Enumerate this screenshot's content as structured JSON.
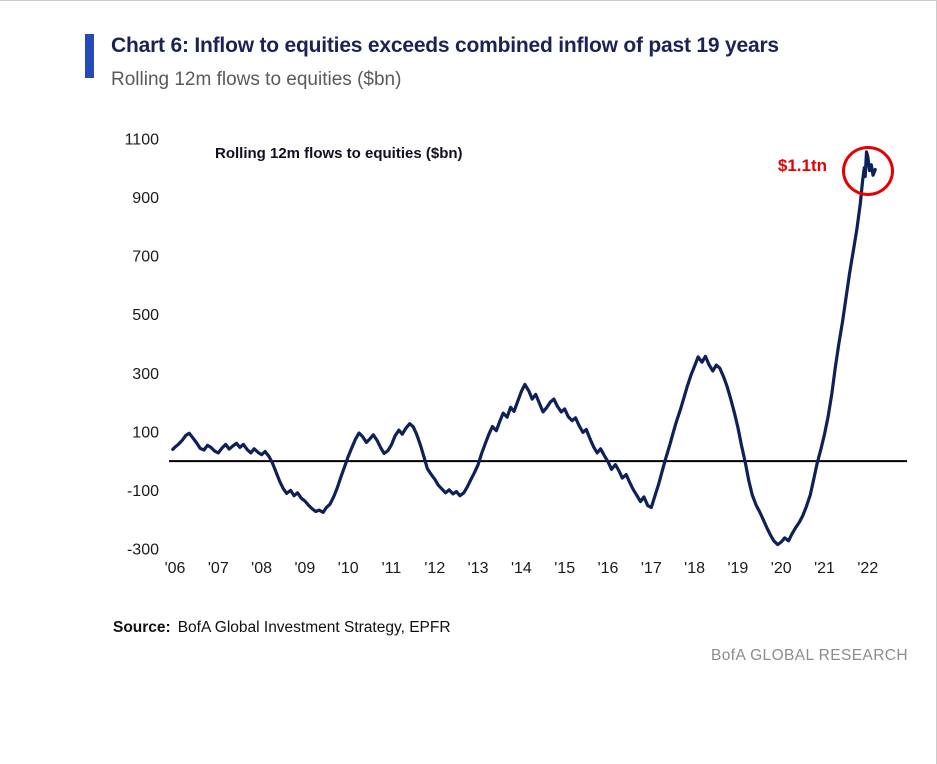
{
  "header": {
    "title": "Chart 6: Inflow to equities exceeds combined inflow of past 19 years",
    "subtitle": "Rolling 12m flows to equities ($bn)",
    "accent_color": "#2649b8"
  },
  "chart": {
    "inner_label": "Rolling 12m flows to equities ($bn)",
    "annotation": {
      "text": "$1.1tn",
      "color": "#e60000"
    },
    "line_color": "#0e2058",
    "zero_line_color": "#000000"
  },
  "source": {
    "label": "Source:",
    "text": "BofA Global Investment Strategy, EPFR"
  },
  "footer": {
    "brand": "BofA GLOBAL RESEARCH"
  },
  "chart_data": {
    "type": "line",
    "title": "Rolling 12m flows to equities ($bn)",
    "xlabel": "",
    "ylabel": "",
    "ylim": [
      -300,
      1100
    ],
    "xlim": [
      2005.95,
      2022.3
    ],
    "grid": false,
    "legend": "none",
    "y_ticks": [
      1100,
      900,
      700,
      500,
      300,
      100,
      -100,
      -300
    ],
    "x_tick_labels": [
      "'06",
      "'07",
      "'08",
      "'09",
      "'10",
      "'11",
      "'12",
      "'13",
      "'14",
      "'15",
      "'16",
      "'17",
      "'18",
      "'19",
      "'20",
      "'21",
      "'22"
    ],
    "x_tick_years": [
      2006,
      2007,
      2008,
      2009,
      2010,
      2011,
      2012,
      2013,
      2014,
      2015,
      2016,
      2017,
      2018,
      2019,
      2020,
      2021,
      2022
    ],
    "annotations": [
      {
        "text": "$1.1tn",
        "x": 2021.97,
        "y": 1056
      }
    ],
    "series": [
      {
        "name": "Rolling 12m flows to equities ($bn)",
        "points": [
          [
            2005.95,
            40
          ],
          [
            2006.0,
            48
          ],
          [
            2006.08,
            58
          ],
          [
            2006.17,
            72
          ],
          [
            2006.25,
            88
          ],
          [
            2006.33,
            95
          ],
          [
            2006.42,
            78
          ],
          [
            2006.5,
            62
          ],
          [
            2006.58,
            44
          ],
          [
            2006.67,
            38
          ],
          [
            2006.75,
            54
          ],
          [
            2006.83,
            47
          ],
          [
            2006.92,
            34
          ],
          [
            2007.0,
            28
          ],
          [
            2007.08,
            44
          ],
          [
            2007.17,
            57
          ],
          [
            2007.25,
            41
          ],
          [
            2007.33,
            51
          ],
          [
            2007.42,
            61
          ],
          [
            2007.5,
            47
          ],
          [
            2007.58,
            57
          ],
          [
            2007.67,
            39
          ],
          [
            2007.75,
            28
          ],
          [
            2007.83,
            42
          ],
          [
            2007.92,
            30
          ],
          [
            2008.0,
            22
          ],
          [
            2008.08,
            33
          ],
          [
            2008.17,
            16
          ],
          [
            2008.25,
            -6
          ],
          [
            2008.33,
            -36
          ],
          [
            2008.42,
            -70
          ],
          [
            2008.5,
            -94
          ],
          [
            2008.58,
            -110
          ],
          [
            2008.67,
            -100
          ],
          [
            2008.75,
            -118
          ],
          [
            2008.83,
            -108
          ],
          [
            2008.92,
            -127
          ],
          [
            2009.0,
            -136
          ],
          [
            2009.08,
            -150
          ],
          [
            2009.17,
            -163
          ],
          [
            2009.25,
            -172
          ],
          [
            2009.33,
            -167
          ],
          [
            2009.42,
            -175
          ],
          [
            2009.5,
            -158
          ],
          [
            2009.58,
            -147
          ],
          [
            2009.67,
            -120
          ],
          [
            2009.75,
            -90
          ],
          [
            2009.83,
            -55
          ],
          [
            2009.92,
            -18
          ],
          [
            2010.0,
            16
          ],
          [
            2010.08,
            45
          ],
          [
            2010.17,
            76
          ],
          [
            2010.25,
            96
          ],
          [
            2010.33,
            84
          ],
          [
            2010.42,
            64
          ],
          [
            2010.5,
            76
          ],
          [
            2010.58,
            90
          ],
          [
            2010.67,
            70
          ],
          [
            2010.75,
            46
          ],
          [
            2010.83,
            26
          ],
          [
            2010.92,
            36
          ],
          [
            2011.0,
            56
          ],
          [
            2011.08,
            86
          ],
          [
            2011.17,
            106
          ],
          [
            2011.25,
            92
          ],
          [
            2011.33,
            112
          ],
          [
            2011.42,
            128
          ],
          [
            2011.5,
            118
          ],
          [
            2011.58,
            92
          ],
          [
            2011.67,
            54
          ],
          [
            2011.75,
            14
          ],
          [
            2011.83,
            -26
          ],
          [
            2011.92,
            -46
          ],
          [
            2012.0,
            -62
          ],
          [
            2012.08,
            -82
          ],
          [
            2012.17,
            -96
          ],
          [
            2012.25,
            -108
          ],
          [
            2012.33,
            -98
          ],
          [
            2012.42,
            -112
          ],
          [
            2012.5,
            -104
          ],
          [
            2012.58,
            -118
          ],
          [
            2012.67,
            -108
          ],
          [
            2012.75,
            -88
          ],
          [
            2012.83,
            -64
          ],
          [
            2012.92,
            -38
          ],
          [
            2013.0,
            -12
          ],
          [
            2013.08,
            26
          ],
          [
            2013.17,
            62
          ],
          [
            2013.25,
            92
          ],
          [
            2013.33,
            118
          ],
          [
            2013.42,
            104
          ],
          [
            2013.5,
            136
          ],
          [
            2013.58,
            164
          ],
          [
            2013.67,
            150
          ],
          [
            2013.75,
            184
          ],
          [
            2013.83,
            170
          ],
          [
            2013.92,
            206
          ],
          [
            2014.0,
            238
          ],
          [
            2014.08,
            262
          ],
          [
            2014.17,
            240
          ],
          [
            2014.25,
            212
          ],
          [
            2014.33,
            228
          ],
          [
            2014.42,
            196
          ],
          [
            2014.5,
            168
          ],
          [
            2014.58,
            182
          ],
          [
            2014.67,
            202
          ],
          [
            2014.75,
            212
          ],
          [
            2014.83,
            188
          ],
          [
            2014.92,
            168
          ],
          [
            2015.0,
            178
          ],
          [
            2015.08,
            152
          ],
          [
            2015.17,
            138
          ],
          [
            2015.25,
            148
          ],
          [
            2015.33,
            122
          ],
          [
            2015.42,
            98
          ],
          [
            2015.5,
            108
          ],
          [
            2015.58,
            78
          ],
          [
            2015.67,
            48
          ],
          [
            2015.75,
            28
          ],
          [
            2015.83,
            42
          ],
          [
            2015.92,
            18
          ],
          [
            2016.0,
            -2
          ],
          [
            2016.08,
            -28
          ],
          [
            2016.17,
            -12
          ],
          [
            2016.25,
            -32
          ],
          [
            2016.33,
            -58
          ],
          [
            2016.42,
            -46
          ],
          [
            2016.5,
            -72
          ],
          [
            2016.58,
            -96
          ],
          [
            2016.67,
            -118
          ],
          [
            2016.75,
            -138
          ],
          [
            2016.83,
            -122
          ],
          [
            2016.92,
            -152
          ],
          [
            2017.0,
            -158
          ],
          [
            2017.08,
            -120
          ],
          [
            2017.17,
            -78
          ],
          [
            2017.25,
            -35
          ],
          [
            2017.33,
            8
          ],
          [
            2017.42,
            52
          ],
          [
            2017.5,
            95
          ],
          [
            2017.58,
            135
          ],
          [
            2017.67,
            175
          ],
          [
            2017.75,
            215
          ],
          [
            2017.83,
            255
          ],
          [
            2017.92,
            295
          ],
          [
            2018.0,
            325
          ],
          [
            2018.08,
            356
          ],
          [
            2018.17,
            338
          ],
          [
            2018.25,
            358
          ],
          [
            2018.33,
            330
          ],
          [
            2018.42,
            308
          ],
          [
            2018.5,
            328
          ],
          [
            2018.58,
            318
          ],
          [
            2018.67,
            288
          ],
          [
            2018.75,
            255
          ],
          [
            2018.83,
            215
          ],
          [
            2018.92,
            165
          ],
          [
            2019.0,
            115
          ],
          [
            2019.08,
            55
          ],
          [
            2019.17,
            -5
          ],
          [
            2019.25,
            -65
          ],
          [
            2019.33,
            -115
          ],
          [
            2019.42,
            -150
          ],
          [
            2019.5,
            -172
          ],
          [
            2019.58,
            -198
          ],
          [
            2019.67,
            -228
          ],
          [
            2019.75,
            -252
          ],
          [
            2019.83,
            -272
          ],
          [
            2019.92,
            -285
          ],
          [
            2020.0,
            -276
          ],
          [
            2020.08,
            -262
          ],
          [
            2020.17,
            -272
          ],
          [
            2020.25,
            -248
          ],
          [
            2020.33,
            -228
          ],
          [
            2020.42,
            -208
          ],
          [
            2020.5,
            -186
          ],
          [
            2020.58,
            -156
          ],
          [
            2020.67,
            -116
          ],
          [
            2020.75,
            -62
          ],
          [
            2020.83,
            -8
          ],
          [
            2020.92,
            42
          ],
          [
            2021.0,
            92
          ],
          [
            2021.08,
            150
          ],
          [
            2021.17,
            232
          ],
          [
            2021.25,
            320
          ],
          [
            2021.33,
            400
          ],
          [
            2021.42,
            480
          ],
          [
            2021.5,
            560
          ],
          [
            2021.58,
            642
          ],
          [
            2021.67,
            722
          ],
          [
            2021.75,
            795
          ],
          [
            2021.83,
            882
          ],
          [
            2021.88,
            958
          ],
          [
            2021.92,
            1002
          ],
          [
            2021.94,
            972
          ],
          [
            2021.97,
            1056
          ],
          [
            2022.0,
            1040
          ],
          [
            2022.04,
            992
          ],
          [
            2022.08,
            1012
          ],
          [
            2022.12,
            976
          ],
          [
            2022.17,
            996
          ]
        ]
      }
    ]
  }
}
